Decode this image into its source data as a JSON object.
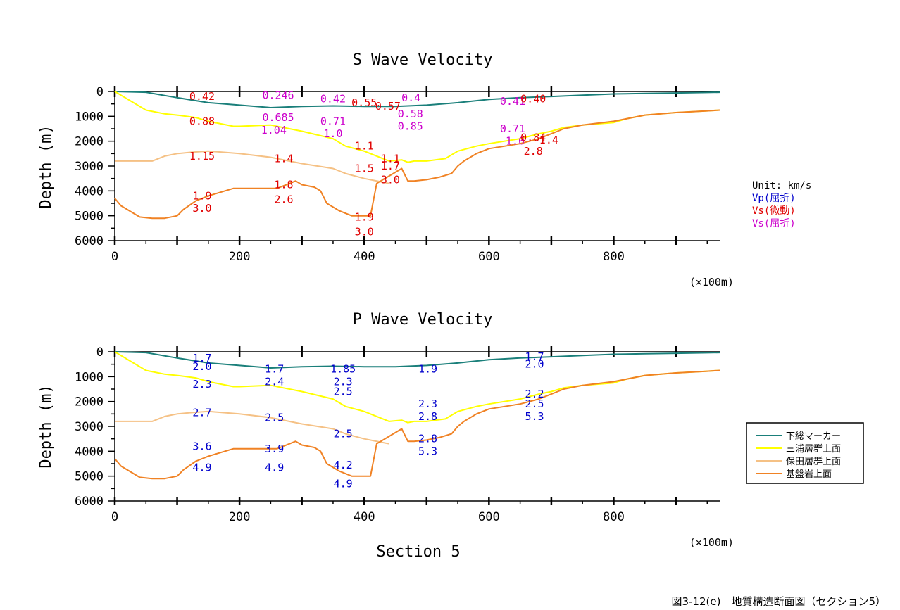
{
  "chart_data": [
    {
      "type": "line",
      "title": "S Wave Velocity",
      "ylabel": "Depth (m)",
      "xunit": "(×100m)",
      "xlim": [
        0,
        970
      ],
      "ylim": [
        6000,
        0
      ],
      "xticks": [
        "0",
        "200",
        "400",
        "600",
        "800"
      ],
      "yticks": [
        "0",
        "1000",
        "2000",
        "3000",
        "4000",
        "5000",
        "6000"
      ],
      "labels": [
        {
          "text": "0.42",
          "x": 140,
          "y": 200,
          "color": "red"
        },
        {
          "text": "0.88",
          "x": 140,
          "y": 1200,
          "color": "red"
        },
        {
          "text": "1.15",
          "x": 140,
          "y": 2600,
          "color": "red"
        },
        {
          "text": "1.9",
          "x": 140,
          "y": 4200,
          "color": "red"
        },
        {
          "text": "3.0",
          "x": 140,
          "y": 4700,
          "color": "red"
        },
        {
          "text": "0.246",
          "x": 262,
          "y": 150,
          "color": "magenta"
        },
        {
          "text": "0.685",
          "x": 262,
          "y": 1050,
          "color": "magenta"
        },
        {
          "text": "1.04",
          "x": 255,
          "y": 1550,
          "color": "magenta"
        },
        {
          "text": "1.4",
          "x": 271,
          "y": 2700,
          "color": "red"
        },
        {
          "text": "1.8",
          "x": 271,
          "y": 3750,
          "color": "red"
        },
        {
          "text": "2.6",
          "x": 271,
          "y": 4350,
          "color": "red"
        },
        {
          "text": "0.42",
          "x": 350,
          "y": 300,
          "color": "magenta"
        },
        {
          "text": "0.71",
          "x": 350,
          "y": 1200,
          "color": "magenta"
        },
        {
          "text": "1.0",
          "x": 350,
          "y": 1700,
          "color": "magenta"
        },
        {
          "text": "0.55",
          "x": 400,
          "y": 450,
          "color": "red"
        },
        {
          "text": "0.57",
          "x": 438,
          "y": 600,
          "color": "red"
        },
        {
          "text": "1.1",
          "x": 400,
          "y": 2200,
          "color": "red"
        },
        {
          "text": "1.5",
          "x": 400,
          "y": 3100,
          "color": "red"
        },
        {
          "text": "1.1",
          "x": 442,
          "y": 2700,
          "color": "red"
        },
        {
          "text": "1.7",
          "x": 442,
          "y": 3000,
          "color": "red"
        },
        {
          "text": "3.0",
          "x": 442,
          "y": 3550,
          "color": "red"
        },
        {
          "text": "1.9",
          "x": 400,
          "y": 5050,
          "color": "red"
        },
        {
          "text": "3.0",
          "x": 400,
          "y": 5650,
          "color": "red"
        },
        {
          "text": "0.4",
          "x": 475,
          "y": 250,
          "color": "magenta"
        },
        {
          "text": "0.58",
          "x": 474,
          "y": 900,
          "color": "magenta"
        },
        {
          "text": "0.85",
          "x": 474,
          "y": 1400,
          "color": "magenta"
        },
        {
          "text": "0.41",
          "x": 638,
          "y": 400,
          "color": "magenta"
        },
        {
          "text": "0.40",
          "x": 671,
          "y": 300,
          "color": "red"
        },
        {
          "text": "0.71",
          "x": 638,
          "y": 1500,
          "color": "magenta"
        },
        {
          "text": "1.0",
          "x": 642,
          "y": 2000,
          "color": "magenta"
        },
        {
          "text": "0.84",
          "x": 671,
          "y": 1850,
          "color": "red"
        },
        {
          "text": "1.4",
          "x": 696,
          "y": 1950,
          "color": "red"
        },
        {
          "text": "2.8",
          "x": 671,
          "y": 2400,
          "color": "red"
        }
      ]
    },
    {
      "type": "line",
      "title": "P Wave Velocity",
      "xlabel": "Section 5",
      "ylabel": "Depth (m)",
      "xunit": "(×100m)",
      "xlim": [
        0,
        970
      ],
      "ylim": [
        6000,
        0
      ],
      "xticks": [
        "0",
        "200",
        "400",
        "600",
        "800"
      ],
      "yticks": [
        "0",
        "1000",
        "2000",
        "3000",
        "4000",
        "5000",
        "6000"
      ],
      "labels": [
        {
          "text": "1.7",
          "x": 140,
          "y": 250,
          "color": "blue"
        },
        {
          "text": "2.0",
          "x": 140,
          "y": 600,
          "color": "blue"
        },
        {
          "text": "2.3",
          "x": 140,
          "y": 1300,
          "color": "blue"
        },
        {
          "text": "2.7",
          "x": 140,
          "y": 2450,
          "color": "blue"
        },
        {
          "text": "3.6",
          "x": 140,
          "y": 3800,
          "color": "blue"
        },
        {
          "text": "4.9",
          "x": 140,
          "y": 4650,
          "color": "blue"
        },
        {
          "text": "1.7",
          "x": 256,
          "y": 700,
          "color": "blue"
        },
        {
          "text": "2.4",
          "x": 256,
          "y": 1200,
          "color": "blue"
        },
        {
          "text": "2.5",
          "x": 256,
          "y": 2650,
          "color": "blue"
        },
        {
          "text": "3.9",
          "x": 256,
          "y": 3900,
          "color": "blue"
        },
        {
          "text": "4.9",
          "x": 256,
          "y": 4650,
          "color": "blue"
        },
        {
          "text": "1.85",
          "x": 366,
          "y": 700,
          "color": "blue"
        },
        {
          "text": "2.3",
          "x": 366,
          "y": 1200,
          "color": "blue"
        },
        {
          "text": "2.5",
          "x": 366,
          "y": 1600,
          "color": "blue"
        },
        {
          "text": "2.5",
          "x": 366,
          "y": 3300,
          "color": "blue"
        },
        {
          "text": "4.2",
          "x": 366,
          "y": 4550,
          "color": "blue"
        },
        {
          "text": "4.9",
          "x": 366,
          "y": 5300,
          "color": "blue"
        },
        {
          "text": "1.9",
          "x": 502,
          "y": 700,
          "color": "blue"
        },
        {
          "text": "2.3",
          "x": 502,
          "y": 2100,
          "color": "blue"
        },
        {
          "text": "2.8",
          "x": 502,
          "y": 2600,
          "color": "blue"
        },
        {
          "text": "2.8",
          "x": 502,
          "y": 3500,
          "color": "blue"
        },
        {
          "text": "5.3",
          "x": 502,
          "y": 4000,
          "color": "blue"
        },
        {
          "text": "1.7",
          "x": 673,
          "y": 200,
          "color": "blue"
        },
        {
          "text": "2.0",
          "x": 673,
          "y": 500,
          "color": "blue"
        },
        {
          "text": "2.2",
          "x": 673,
          "y": 1700,
          "color": "blue"
        },
        {
          "text": "2.5",
          "x": 673,
          "y": 2100,
          "color": "blue"
        },
        {
          "text": "5.3",
          "x": 673,
          "y": 2600,
          "color": "blue"
        }
      ]
    }
  ],
  "series": [
    {
      "name": "下総マーカー",
      "color": "#1a7f7a",
      "x": [
        0,
        50,
        100,
        150,
        200,
        250,
        300,
        350,
        400,
        450,
        500,
        550,
        600,
        650,
        700,
        750,
        800,
        850,
        900,
        950,
        970
      ],
      "y": [
        0,
        30,
        250,
        450,
        550,
        650,
        600,
        580,
        600,
        600,
        550,
        450,
        320,
        250,
        200,
        150,
        100,
        80,
        60,
        40,
        30
      ]
    },
    {
      "name": "三浦層群上面",
      "color": "#ffff00",
      "x": [
        0,
        20,
        50,
        80,
        100,
        130,
        150,
        190,
        200,
        250,
        300,
        350,
        370,
        400,
        430,
        440,
        460,
        470,
        480,
        500,
        530,
        550,
        580,
        600,
        650,
        680,
        700,
        720,
        750,
        800,
        820,
        850,
        900,
        950,
        970
      ],
      "y": [
        0,
        300,
        750,
        900,
        950,
        1050,
        1200,
        1400,
        1400,
        1350,
        1600,
        1900,
        2200,
        2400,
        2700,
        2800,
        2750,
        2850,
        2800,
        2800,
        2700,
        2400,
        2200,
        2100,
        1900,
        1700,
        1600,
        1450,
        1350,
        1250,
        1100,
        950,
        850,
        780,
        750
      ]
    },
    {
      "name": "保田層群上面",
      "color": "#f5c185",
      "x": [
        0,
        30,
        60,
        80,
        100,
        120,
        150,
        200,
        250,
        300,
        350,
        370,
        400,
        430,
        440
      ],
      "y": [
        2800,
        2800,
        2800,
        2600,
        2500,
        2450,
        2400,
        2500,
        2650,
        2900,
        3100,
        3300,
        3500,
        3650,
        3700
      ]
    },
    {
      "name": "基盤岩上面",
      "color": "#f08224",
      "x": [
        0,
        10,
        40,
        60,
        80,
        100,
        110,
        130,
        150,
        190,
        200,
        240,
        260,
        270,
        290,
        300,
        320,
        330,
        340,
        360,
        380,
        400,
        410,
        420,
        440,
        460,
        470,
        480,
        500,
        520,
        540,
        550,
        560,
        580,
        600,
        650,
        680,
        700,
        720,
        750,
        800,
        820,
        850,
        900,
        950,
        970
      ],
      "y": [
        4300,
        4600,
        5050,
        5100,
        5100,
        5000,
        4750,
        4400,
        4200,
        3900,
        3900,
        3900,
        3900,
        3800,
        3600,
        3750,
        3850,
        4000,
        4500,
        4800,
        5000,
        5000,
        5000,
        3700,
        3400,
        3100,
        3600,
        3600,
        3550,
        3450,
        3300,
        3000,
        2800,
        2500,
        2300,
        2100,
        1900,
        1700,
        1500,
        1350,
        1200,
        1100,
        950,
        850,
        780,
        750
      ]
    }
  ],
  "unit_box": {
    "title": "Unit: km/s",
    "items": [
      {
        "text": "Vp(屈折)",
        "color": "#0000cc"
      },
      {
        "text": "Vs(微動)",
        "color": "#e00000"
      },
      {
        "text": "Vs(屈折)",
        "color": "#cc00cc"
      }
    ]
  },
  "legend": {
    "placement": "right"
  },
  "caption": "図3-12(e)　地質構造断面図（セクション5）"
}
